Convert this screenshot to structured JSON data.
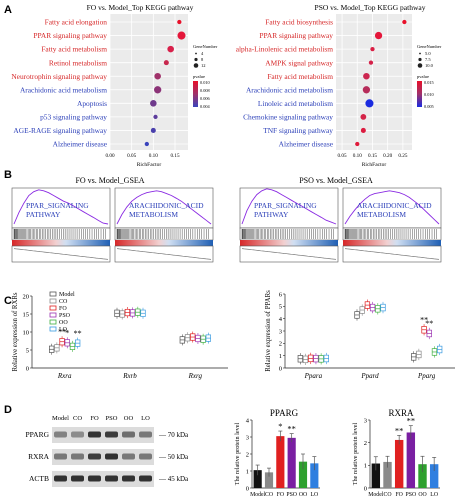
{
  "panels": {
    "A": "A",
    "B": "B",
    "C": "C",
    "D": "D"
  },
  "chart_data": [
    {
      "type": "scatter",
      "panel": "A-left",
      "title": "FO vs. Model_Top KEGG pathway",
      "xlabel": "RichFactor",
      "xticks": [
        "0.00",
        "0.05",
        "0.10",
        "0.15"
      ],
      "xlim": [
        0.0,
        0.18
      ],
      "categories": [
        "Fatty acid elongation",
        "PPAR signaling pathway",
        "Fatty acid metabolism",
        "Retinol metabolism",
        "Neurotrophin signaling pathway",
        "Arachidonic acid metabolism",
        "Apoptosis",
        "p53 signaling pathway",
        "AGE-RAGE signaling pathway",
        "Alzheimer disease"
      ],
      "category_colors": [
        "#d62728",
        "#d62728",
        "#d62728",
        "#d62728",
        "#d62728",
        "#2b3fb8",
        "#2b3fb8",
        "#2b3fb8",
        "#2b3fb8",
        "#2b3fb8"
      ],
      "x": [
        0.16,
        0.165,
        0.14,
        0.13,
        0.11,
        0.11,
        0.1,
        0.105,
        0.1,
        0.085
      ],
      "size": [
        3,
        8,
        6,
        4,
        6,
        7,
        6,
        3,
        4,
        3
      ],
      "pvalue_color": [
        "#e8102a",
        "#e4163a",
        "#d8204a",
        "#c8284e",
        "#a0326a",
        "#8c3478",
        "#6f3a8c",
        "#5c3c9c",
        "#4a40ac",
        "#3a44bc"
      ],
      "legend_size_title": "GeneNumber",
      "legend_sizes": [
        "4",
        "8",
        "12"
      ],
      "legend_color_title": "pvalue",
      "legend_color_ticks": [
        "0.010",
        "0.008",
        "0.006",
        "0.004"
      ]
    },
    {
      "type": "scatter",
      "panel": "A-right",
      "title": "PSO vs. Model_Top KEGG pathway",
      "xlabel": "RichFactor",
      "xticks": [
        "0.05",
        "0.10",
        "0.15",
        "0.20",
        "0.25"
      ],
      "xlim": [
        0.03,
        0.28
      ],
      "categories": [
        "Fatty acid biosynthesis",
        "PPAR signaling pathway",
        "alpha-Linolenic acid metabolism",
        "AMPK signal pathway",
        "Fatty acid metabolism",
        "Arachidonic acid metabolism",
        "Linoleic acid metabolism",
        "Chemokine signaling pathway",
        "TNF signaling pathway",
        "Alzheimer disease"
      ],
      "category_colors": [
        "#d62728",
        "#d62728",
        "#d62728",
        "#d62728",
        "#d62728",
        "#2b3fb8",
        "#2b3fb8",
        "#2b3fb8",
        "#2b3fb8",
        "#2b3fb8"
      ],
      "x": [
        0.255,
        0.17,
        0.15,
        0.145,
        0.13,
        0.13,
        0.14,
        0.12,
        0.12,
        0.1
      ],
      "size": [
        3,
        7,
        3,
        3,
        6,
        7,
        8,
        5,
        4,
        3
      ],
      "pvalue_color": [
        "#e8102a",
        "#e4163a",
        "#da1e44",
        "#d4224a",
        "#cc2650",
        "#b62c5a",
        "#1a2be0",
        "#d42448",
        "#dc1c40",
        "#e01a3a"
      ],
      "legend_size_title": "GeneNumber",
      "legend_sizes": [
        "5.0",
        "7.5",
        "10.0"
      ],
      "legend_color_title": "pvalue",
      "legend_color_ticks": [
        "0.015",
        "0.010",
        "0.005"
      ]
    },
    {
      "type": "line",
      "panel": "B",
      "titles": [
        "FO vs. Model_GSEA",
        "PSO vs. Model_GSEA"
      ],
      "plots": [
        {
          "label": "PPAR_SIGNALING_PATHWAY",
          "label_lines": [
            "PPAR_SIGNALING",
            "PATHWAY"
          ],
          "es": [
            0.0,
            0.12,
            0.22,
            0.3,
            0.34,
            0.36,
            0.35,
            0.33,
            0.3,
            0.27,
            0.24,
            0.22,
            0.19,
            0.16,
            0.13,
            0.1,
            0.07,
            0.04,
            0.01,
            0.0
          ]
        },
        {
          "label": "ARACHIDONIC_ACID_METABOLISM",
          "label_lines": [
            "ARACHIDONIC_ACID",
            "METABOLISM"
          ],
          "es": [
            0.0,
            0.1,
            0.18,
            0.24,
            0.28,
            0.31,
            0.33,
            0.34,
            0.35,
            0.34,
            0.32,
            0.3,
            0.27,
            0.24,
            0.2,
            0.16,
            0.12,
            0.08,
            0.04,
            0.0
          ]
        },
        {
          "label": "PPAR_SIGNALING_PATHWAY",
          "label_lines": [
            "PPAR_SIGNALING",
            "PATHWAY"
          ],
          "es": [
            0.0,
            0.14,
            0.24,
            0.31,
            0.35,
            0.37,
            0.36,
            0.34,
            0.31,
            0.28,
            0.25,
            0.22,
            0.19,
            0.16,
            0.13,
            0.1,
            0.07,
            0.04,
            0.02,
            0.0
          ]
        },
        {
          "label": "ARACHIDONIC_ACID_METABOLISM",
          "label_lines": [
            "ARACHIDONIC_ACID",
            "METABOLISM"
          ],
          "es": [
            0.0,
            0.08,
            0.15,
            0.21,
            0.26,
            0.3,
            0.32,
            0.33,
            0.34,
            0.35,
            0.34,
            0.33,
            0.31,
            0.28,
            0.24,
            0.2,
            0.15,
            0.1,
            0.05,
            0.0
          ]
        }
      ]
    },
    {
      "type": "box",
      "panel": "C-left",
      "ylabel": "Relative expression of RXRs",
      "ylim": [
        0,
        20
      ],
      "yticks": [
        "0",
        "5",
        "10",
        "15",
        "20"
      ],
      "categories": [
        "Rxra",
        "Rxrb",
        "Rxrg"
      ],
      "series_names": [
        "Model",
        "CO",
        "FO",
        "PSO",
        "OO",
        "LO"
      ],
      "series_colors": [
        "#555555",
        "#8a8a8a",
        "#e02020",
        "#9b30b0",
        "#40b040",
        "#3a9be0"
      ],
      "values": [
        [
          5.2,
          5.6,
          7.3,
          7.0,
          6.0,
          6.9
        ],
        [
          15.2,
          15.0,
          15.4,
          15.3,
          15.5,
          15.2
        ],
        [
          7.8,
          8.4,
          8.6,
          8.2,
          8.0,
          8.3
        ]
      ],
      "significance": [
        {
          "category": "Rxra",
          "series": "FO",
          "label": "**"
        },
        {
          "category": "Rxra",
          "series": "PSO",
          "label": "*"
        },
        {
          "category": "Rxra",
          "series": "LO",
          "label": "**"
        }
      ]
    },
    {
      "type": "box",
      "panel": "C-right",
      "ylabel": "Relative expression of PPARs",
      "ylim": [
        0,
        6
      ],
      "yticks": [
        "0",
        "1",
        "2",
        "3",
        "4",
        "5",
        "6"
      ],
      "categories": [
        "Ppara",
        "Ppard",
        "Pparg"
      ],
      "series_names": [
        "Model",
        "CO",
        "FO",
        "PSO",
        "OO",
        "LO"
      ],
      "series_colors": [
        "#555555",
        "#8a8a8a",
        "#e02020",
        "#9b30b0",
        "#40b040",
        "#3a9be0"
      ],
      "values": [
        [
          0.75,
          0.7,
          0.78,
          0.76,
          0.74,
          0.77
        ],
        [
          4.3,
          4.7,
          5.1,
          4.9,
          4.8,
          4.9
        ],
        [
          0.9,
          1.1,
          3.1,
          2.8,
          1.3,
          1.5
        ]
      ],
      "significance": [
        {
          "category": "Pparg",
          "series": "FO",
          "label": "**"
        },
        {
          "category": "Pparg",
          "series": "PSO",
          "label": "**"
        }
      ]
    },
    {
      "type": "bar",
      "panel": "D-PPARG",
      "title": "PPARG",
      "ylabel": "The relative protein level",
      "ylim": [
        0,
        4
      ],
      "yticks": [
        "0",
        "1",
        "2",
        "3",
        "4"
      ],
      "categories": [
        "Model",
        "CO",
        "FO",
        "PSO",
        "OO",
        "LO"
      ],
      "values": [
        1.05,
        0.92,
        3.05,
        2.95,
        1.55,
        1.45
      ],
      "errors": [
        0.3,
        0.25,
        0.3,
        0.25,
        0.45,
        0.4
      ],
      "colors": [
        "#111111",
        "#8a8a8a",
        "#e02020",
        "#7a1fa2",
        "#2ea02e",
        "#2f7fe0"
      ],
      "significance": [
        {
          "category": "FO",
          "label": "*"
        },
        {
          "category": "PSO",
          "label": "**"
        }
      ]
    },
    {
      "type": "bar",
      "panel": "D-RXRA",
      "title": "RXRA",
      "ylabel": "The relative protein level",
      "ylim": [
        0,
        3
      ],
      "yticks": [
        "0",
        "1",
        "2",
        "3"
      ],
      "categories": [
        "Model",
        "CO",
        "FO",
        "PSO",
        "OO",
        "LO"
      ],
      "values": [
        1.08,
        1.15,
        2.12,
        2.45,
        1.05,
        1.05
      ],
      "errors": [
        0.3,
        0.25,
        0.2,
        0.3,
        0.35,
        0.3
      ],
      "colors": [
        "#111111",
        "#8a8a8a",
        "#e02020",
        "#7a1fa2",
        "#2ea02e",
        "#2f7fe0"
      ],
      "significance": [
        {
          "category": "FO",
          "label": "**"
        },
        {
          "category": "PSO",
          "label": "**"
        }
      ]
    }
  ],
  "western_blot": {
    "lanes": [
      "Model",
      "CO",
      "FO",
      "PSO",
      "OO",
      "LO"
    ],
    "rows": [
      {
        "name": "PPARG",
        "kda": "70 kDa",
        "intensity": [
          0.45,
          0.4,
          0.85,
          0.8,
          0.55,
          0.5
        ]
      },
      {
        "name": "RXRA",
        "kda": "50 kDa",
        "intensity": [
          0.5,
          0.5,
          0.8,
          0.85,
          0.5,
          0.5
        ]
      },
      {
        "name": "ACTB",
        "kda": "45 kDa",
        "intensity": [
          0.85,
          0.85,
          0.85,
          0.85,
          0.85,
          0.85
        ]
      }
    ]
  }
}
